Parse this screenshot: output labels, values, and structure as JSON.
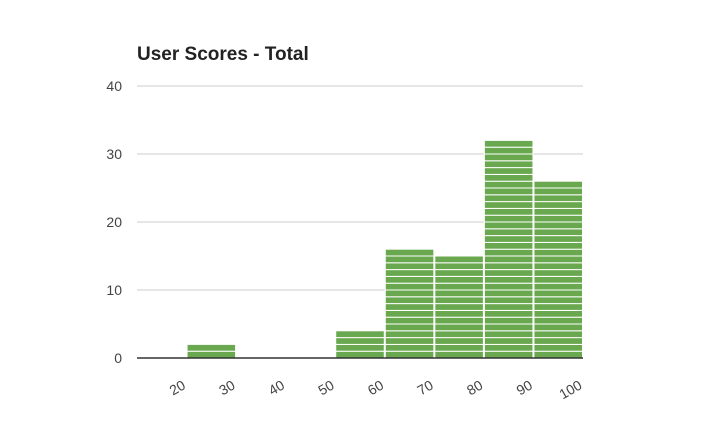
{
  "chart_data": {
    "type": "bar",
    "subtype": "histogram",
    "title": "User Scores - Total",
    "xlabel": "",
    "ylabel": "",
    "categories": [
      "20",
      "30",
      "40",
      "50",
      "60",
      "70",
      "80",
      "90",
      "100"
    ],
    "x_ticks": [
      "20",
      "30",
      "40",
      "50",
      "60",
      "70",
      "80",
      "90",
      "100"
    ],
    "bins": [
      {
        "from": 10,
        "to": 20,
        "value": 0
      },
      {
        "from": 20,
        "to": 30,
        "value": 2
      },
      {
        "from": 30,
        "to": 40,
        "value": 0
      },
      {
        "from": 40,
        "to": 50,
        "value": 0
      },
      {
        "from": 50,
        "to": 60,
        "value": 4
      },
      {
        "from": 60,
        "to": 70,
        "value": 16
      },
      {
        "from": 70,
        "to": 80,
        "value": 15
      },
      {
        "from": 80,
        "to": 90,
        "value": 32
      },
      {
        "from": 90,
        "to": 100,
        "value": 26
      }
    ],
    "xlim": [
      10,
      100
    ],
    "ylim": [
      0,
      40
    ],
    "y_ticks": [
      0,
      10,
      20,
      30,
      40
    ],
    "grid": true,
    "legend": "none",
    "color": "#6aa84f"
  }
}
